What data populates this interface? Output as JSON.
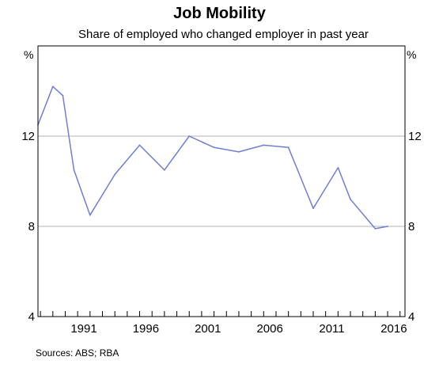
{
  "title": "Job Mobility",
  "subtitle": "Share of employed who changed employer in past year",
  "source": "Sources:  ABS; RBA",
  "colors": {
    "series": "#6f7fd4",
    "grid": "#b5b5b5",
    "axis": "#000000"
  },
  "chart_data": {
    "type": "line",
    "title": "Job Mobility",
    "subtitle": "Share of employed who changed employer in past year",
    "y_unit_left": "%",
    "y_unit_right": "%",
    "ylim": [
      4,
      16
    ],
    "y_ticks": [
      4,
      8,
      12
    ],
    "xlim": [
      1987.3,
      2016.9
    ],
    "x_ticks": [
      1991,
      1996,
      2001,
      2006,
      2011,
      2016
    ],
    "grid": "horizontal",
    "series": [
      {
        "x": [
          1987.3,
          1988.5,
          1989.3,
          1990.2,
          1991.5,
          1993.5,
          1995.5,
          1997.5,
          1999.5,
          2001.5,
          2003.5,
          2005.5,
          2007.5,
          2009.5,
          2011.5,
          2012.5,
          2014.5,
          2015.5
        ],
        "values": [
          12.5,
          14.2,
          13.8,
          10.5,
          8.5,
          10.3,
          11.6,
          10.5,
          12.0,
          11.5,
          11.3,
          11.6,
          11.5,
          8.8,
          10.6,
          9.2,
          7.9,
          8.0
        ]
      }
    ]
  }
}
